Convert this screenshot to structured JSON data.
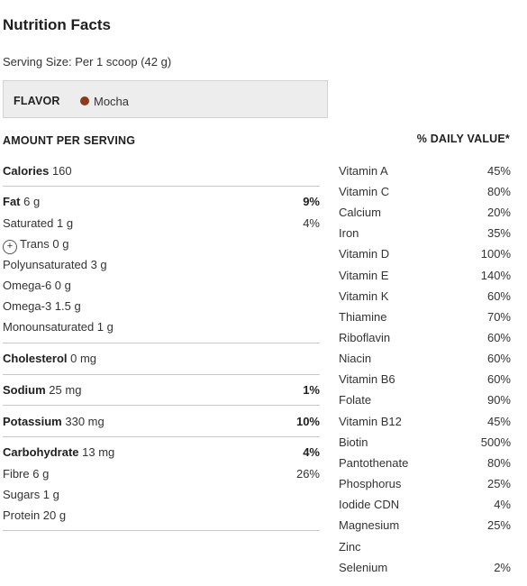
{
  "title": "Nutrition Facts",
  "serving_size": "Serving Size: Per 1 scoop (42 g)",
  "flavor": {
    "label": "FLAVOR",
    "value": "Mocha",
    "dot_color": "#8b3a1e"
  },
  "amount_header": "AMOUNT PER SERVING",
  "daily_value_header": "% DAILY VALUE*",
  "nutrients": {
    "calories": {
      "name": "Calories",
      "amount": "160"
    },
    "fat": {
      "name": "Fat",
      "amount": "6 g",
      "pct": "9%"
    },
    "saturated": {
      "name": "Saturated 1 g",
      "pct": "4%"
    },
    "trans": {
      "icon": "+",
      "name": "Trans 0 g"
    },
    "polyunsaturated": {
      "name": "Polyunsaturated 3 g"
    },
    "omega6": {
      "name": "Omega-6 0 g"
    },
    "omega3": {
      "name": "Omega-3 1.5 g"
    },
    "monounsaturated": {
      "name": "Monounsaturated 1 g"
    },
    "cholesterol": {
      "name": "Cholesterol",
      "amount": "0 mg"
    },
    "sodium": {
      "name": "Sodium",
      "amount": "25 mg",
      "pct": "1%"
    },
    "potassium": {
      "name": "Potassium",
      "amount": "330 mg",
      "pct": "10%"
    },
    "carbohydrate": {
      "name": "Carbohydrate",
      "amount": "13 mg",
      "pct": "4%"
    },
    "fibre": {
      "name": "Fibre 6 g",
      "pct": "26%"
    },
    "sugars": {
      "name": "Sugars 1 g"
    },
    "protein": {
      "name": "Protein 20 g"
    }
  },
  "vitamins": [
    {
      "name": "Vitamin A",
      "pct": "45%"
    },
    {
      "name": "Vitamin C",
      "pct": "80%"
    },
    {
      "name": "Calcium",
      "pct": "20%"
    },
    {
      "name": "Iron",
      "pct": "35%"
    },
    {
      "name": "Vitamin D",
      "pct": "100%"
    },
    {
      "name": "Vitamin E",
      "pct": "140%"
    },
    {
      "name": "Vitamin K",
      "pct": "60%"
    },
    {
      "name": "Thiamine",
      "pct": "70%"
    },
    {
      "name": "Riboflavin",
      "pct": "60%"
    },
    {
      "name": "Niacin",
      "pct": "60%"
    },
    {
      "name": "Vitamin B6",
      "pct": "60%"
    },
    {
      "name": "Folate",
      "pct": "90%"
    },
    {
      "name": "Vitamin B12",
      "pct": "45%"
    },
    {
      "name": "Biotin",
      "pct": "500%"
    },
    {
      "name": "Pantothenate",
      "pct": "80%"
    },
    {
      "name": "Phosphorus",
      "pct": "25%"
    },
    {
      "name": "Iodide CDN",
      "pct": "4%"
    },
    {
      "name": "Magnesium",
      "pct": "25%"
    },
    {
      "name": "Zinc",
      "pct": ""
    },
    {
      "name": "Selenium",
      "pct": "2%"
    }
  ]
}
